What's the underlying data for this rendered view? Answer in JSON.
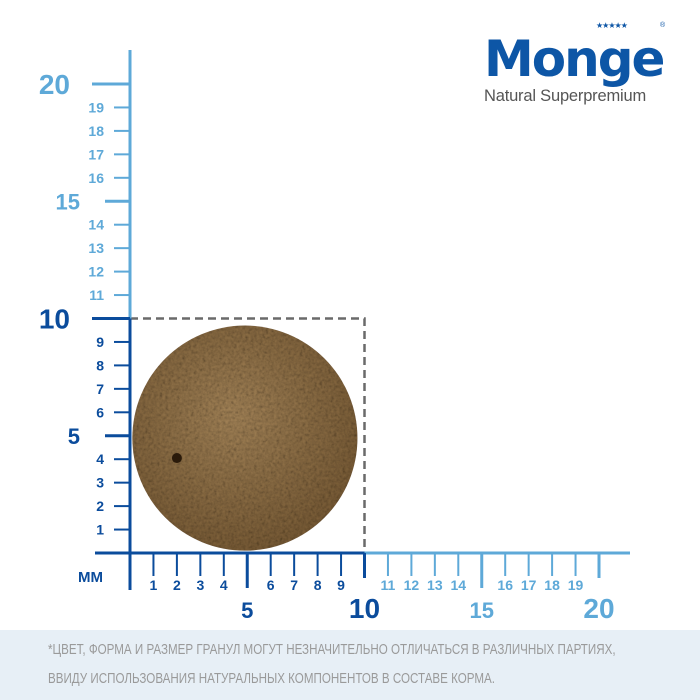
{
  "logo": {
    "brand": "Monge",
    "tagline": "Natural Superpremium",
    "stars": "★★★★★"
  },
  "ruler": {
    "unit_label": "мм",
    "range_mm": [
      0,
      21
    ],
    "highlight_mm": 10,
    "colors": {
      "inner": "#0b4c9c",
      "outer": "#5ea9d8",
      "dash": "#6a6a6a",
      "kibble": "#9a7848"
    },
    "x_minor_labels": [
      "1",
      "2",
      "3",
      "4",
      "6",
      "7",
      "8",
      "9",
      "11",
      "12",
      "13",
      "14",
      "16",
      "17",
      "18",
      "19"
    ],
    "x_major_labels": [
      "5",
      "10",
      "15",
      "20"
    ],
    "y_minor_labels": [
      "1",
      "2",
      "3",
      "4",
      "6",
      "7",
      "8",
      "9",
      "11",
      "12",
      "13",
      "14",
      "16",
      "17",
      "18",
      "19"
    ],
    "y_major_labels": [
      "5",
      "10",
      "15",
      "20"
    ]
  },
  "kibble": {
    "diameter_mm": 9.6
  },
  "footer": {
    "line1": "*ЦВЕТ, ФОРМА И РАЗМЕР ГРАНУЛ МОГУТ НЕЗНАЧИТЕЛЬНО ОТЛИЧАТЬСЯ В РАЗЛИЧНЫХ ПАРТИЯХ,",
    "line2": "ВВИДУ ИСПОЛЬЗОВАНИЯ НАТУРАЛЬНЫХ КОМПОНЕНТОВ В СОСТАВЕ КОРМА."
  }
}
